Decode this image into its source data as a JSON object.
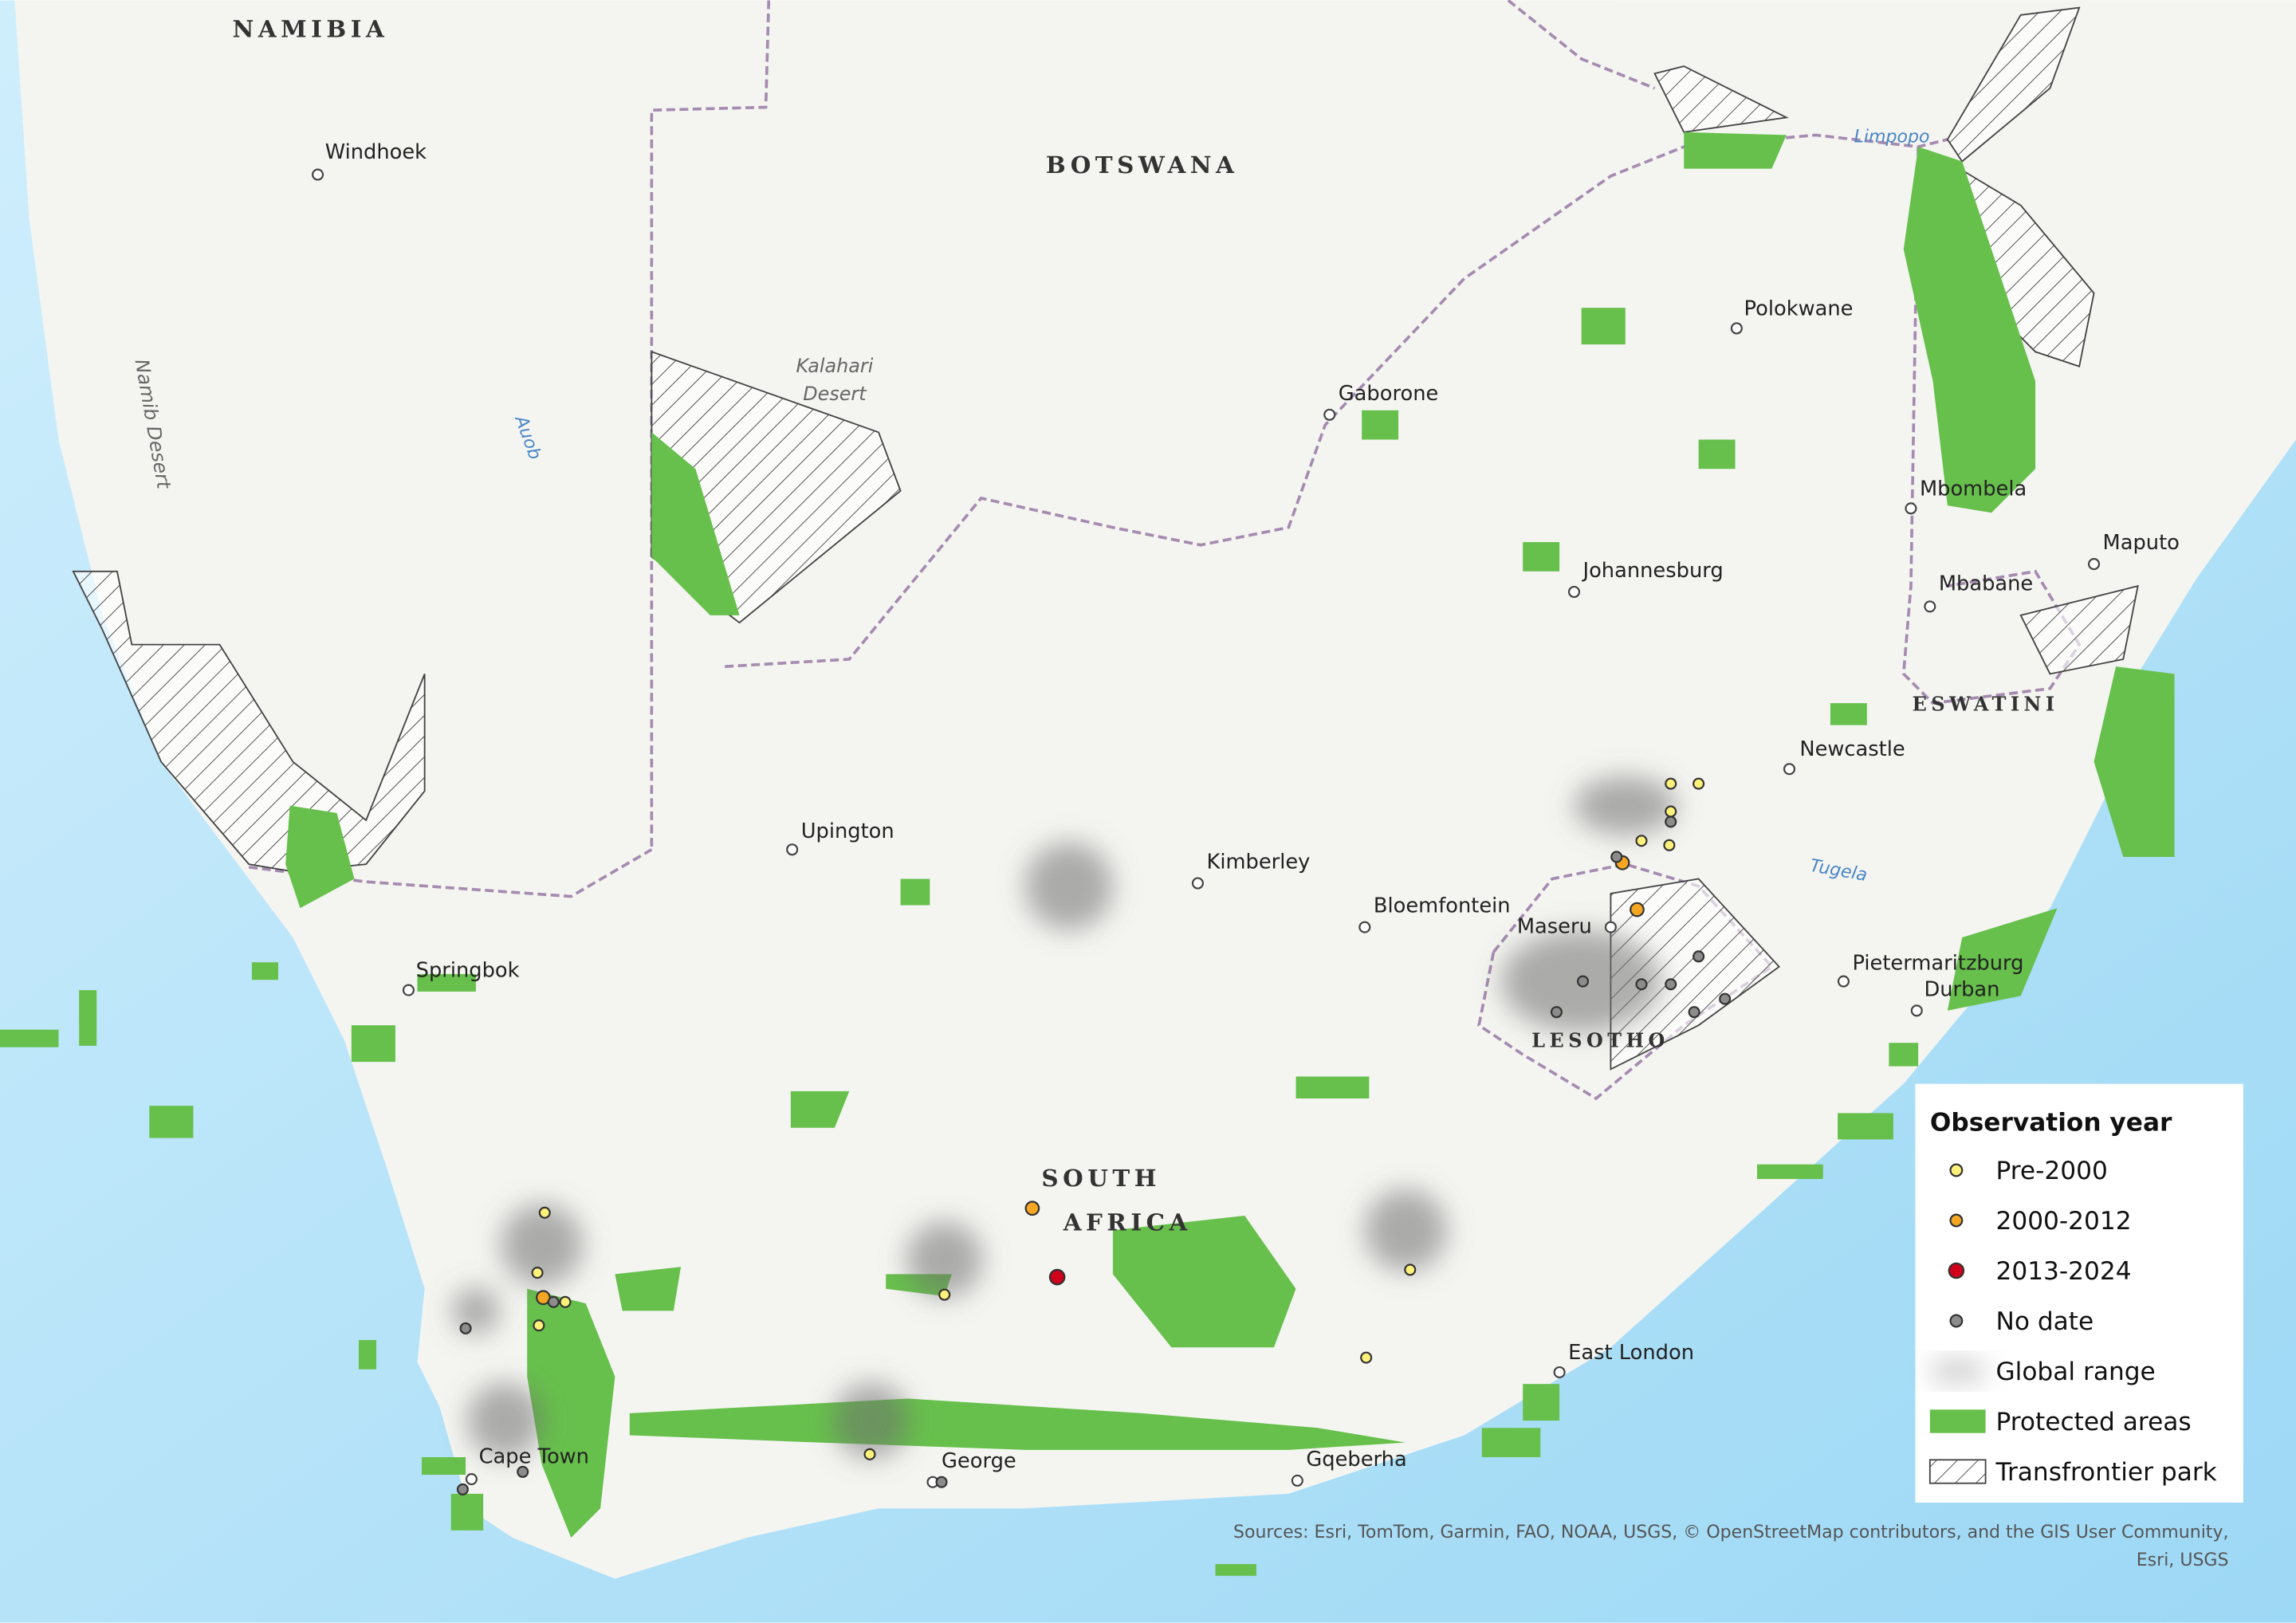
{
  "country_labels": [
    "NAMIBIA",
    "BOTSWANA",
    "SOUTH",
    "AFRICA",
    "LESOTHO",
    "ESWATINI"
  ],
  "cities": [
    "Windhoek",
    "Gaborone",
    "Polokwane",
    "Mbombela",
    "Maputo",
    "Mbabane",
    "Johannesburg",
    "Newcastle",
    "Upington",
    "Kimberley",
    "Bloemfontein",
    "Maseru",
    "Pietermaritzburg",
    "Durban",
    "Springbok",
    "East London",
    "Cape Town",
    "George",
    "Gqeberha"
  ],
  "features": [
    "Namib Desert",
    "Kalahari",
    "Desert",
    "Auob",
    "Limpopo",
    "Tugela"
  ],
  "legend": {
    "title": "Observation year",
    "items": [
      {
        "label": "Pre-2000",
        "color": "#fff27a"
      },
      {
        "label": "2000-2012",
        "color": "#f5a623"
      },
      {
        "label": "2013-2024",
        "color": "#d0021b"
      },
      {
        "label": "No date",
        "color": "#8c8c8c"
      },
      {
        "label": "Global range",
        "color": "#c8c8c8"
      },
      {
        "label": "Protected areas",
        "color": "#67c04c"
      },
      {
        "label": "Transfrontier park",
        "color": "#ffffff"
      }
    ]
  },
  "sources": [
    "Sources: Esri, TomTom, Garmin, FAO, NOAA, USGS, © OpenStreetMap contributors, and the GIS User Community,",
    "Esri, USGS"
  ]
}
